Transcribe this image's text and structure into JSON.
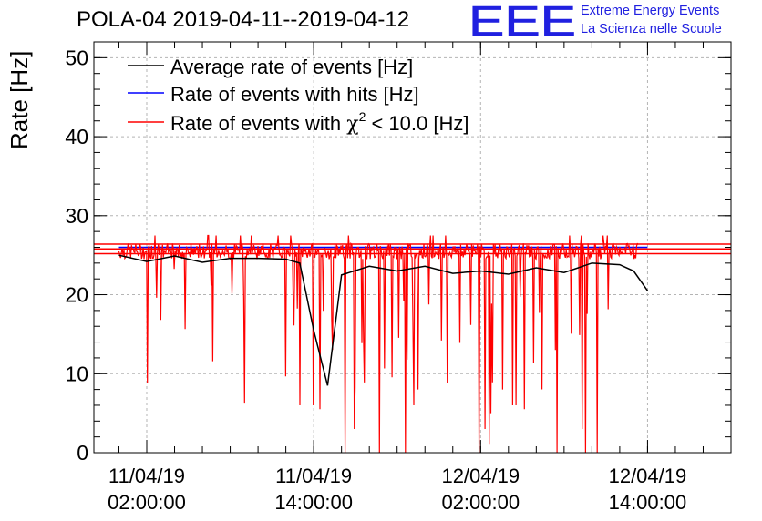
{
  "header": {
    "title": "POLA-04 2019-04-11--2019-04-12",
    "logo_text": "EEE",
    "logo_line1": "Extreme Energy Events",
    "logo_line2": "La Scienza nelle Scuole"
  },
  "colors": {
    "average": "#000000",
    "hits": "#0000ff",
    "chi2": "#ff0000",
    "logo": "#2020e0",
    "grid": "#b4b4b4"
  },
  "chart_data": {
    "type": "line",
    "ylabel": "Rate [Hz]",
    "ylim": [
      0,
      52
    ],
    "yticks": [
      0,
      10,
      20,
      30,
      40,
      50
    ],
    "x_axis": "datetime",
    "xlim": [
      "2019-04-10 22:12",
      "2019-04-12 20:00"
    ],
    "xticks": [
      {
        "at": "2019-04-11 02:00",
        "line1": "11/04/19",
        "line2": "02:00:00"
      },
      {
        "at": "2019-04-11 14:00",
        "line1": "11/04/19",
        "line2": "14:00:00"
      },
      {
        "at": "2019-04-12 02:00",
        "line1": "12/04/19",
        "line2": "02:00:00"
      },
      {
        "at": "2019-04-12 14:00",
        "line1": "12/04/19",
        "line2": "14:00:00"
      }
    ],
    "grid": true,
    "legend_position": "top-left",
    "legend": [
      {
        "key": "average",
        "label": "Average rate of events [Hz]"
      },
      {
        "key": "hits",
        "label": "Rate of events with hits [Hz]"
      },
      {
        "key": "chi2",
        "label_prefix": "Rate of events with ",
        "label_symbol": "χ",
        "label_sup": "2",
        "label_suffix": " < 10.0 [Hz]"
      }
    ],
    "series": [
      {
        "name": "Average rate of events [Hz]",
        "x": [
          "2019-04-11 00:00",
          "2019-04-11 02:00",
          "2019-04-11 04:00",
          "2019-04-11 06:00",
          "2019-04-11 08:00",
          "2019-04-11 10:00",
          "2019-04-11 12:00",
          "2019-04-11 13:00",
          "2019-04-11 14:00",
          "2019-04-11 15:00",
          "2019-04-11 16:00",
          "2019-04-11 18:00",
          "2019-04-11 20:00",
          "2019-04-11 22:00",
          "2019-04-12 00:00",
          "2019-04-12 02:00",
          "2019-04-12 04:00",
          "2019-04-12 06:00",
          "2019-04-12 08:00",
          "2019-04-12 10:00",
          "2019-04-12 12:00",
          "2019-04-12 13:00",
          "2019-04-12 14:00"
        ],
        "y": [
          25.0,
          24.2,
          24.9,
          24.1,
          24.6,
          24.6,
          24.5,
          24.0,
          15.5,
          8.5,
          22.5,
          23.6,
          23.0,
          23.6,
          22.7,
          23.0,
          22.6,
          23.4,
          22.8,
          24.0,
          23.8,
          23.0,
          20.5
        ]
      },
      {
        "name": "Rate of events with hits [Hz]",
        "x": [
          "2019-04-11 00:00",
          "2019-04-12 14:00"
        ],
        "y": [
          26.0,
          26.0
        ]
      },
      {
        "name": "Rate of events with χ2 < 10.0 [Hz]",
        "x_range": [
          "2019-04-11 00:00",
          "2019-04-12 13:20"
        ],
        "baseline": [
          24.5,
          26.5
        ],
        "dips_y": [
          6.0,
          6.0,
          5.5,
          13.0,
          0.0,
          3.0,
          0.0,
          0.0,
          6.0,
          8.0,
          0.0,
          3.0,
          1.0,
          5.0,
          8.0
        ]
      }
    ]
  }
}
